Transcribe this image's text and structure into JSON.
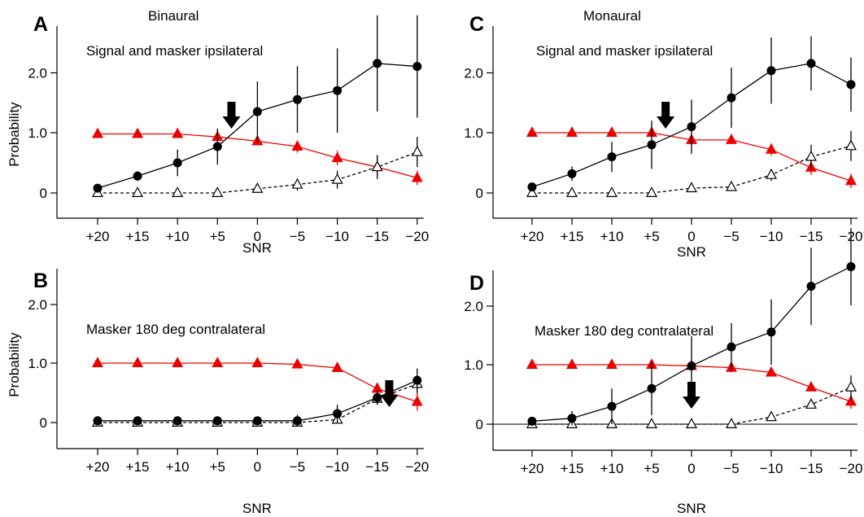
{
  "chart_data": [
    {
      "panel": "A",
      "type": "line",
      "header": "Binaural",
      "annotation": "Signal and masker ipsilateral",
      "xlabel": "SNR",
      "ylabel": "Probability",
      "categories": [
        "+20",
        "+15",
        "+10",
        "+5",
        "0",
        "−5",
        "−10",
        "−15",
        "−20"
      ],
      "yticks": [
        "0",
        "1.0",
        "2.0"
      ],
      "ylim": [
        -0.4,
        2.7
      ],
      "arrow_at": 3.35,
      "series": [
        {
          "style": "filled-circle-black",
          "color": "#000000",
          "values": [
            0.08,
            0.28,
            0.5,
            0.77,
            1.35,
            1.55,
            1.7,
            2.15,
            2.1
          ],
          "err": [
            0.05,
            0.08,
            0.22,
            0.3,
            0.5,
            0.55,
            0.7,
            0.8,
            0.85
          ]
        },
        {
          "style": "filled-triangle-red",
          "color": "#ee0000",
          "values": [
            0.98,
            0.98,
            0.98,
            0.93,
            0.86,
            0.77,
            0.58,
            0.43,
            0.25
          ],
          "err": [
            0,
            0,
            0,
            0,
            0,
            0.1,
            0.12,
            0.15,
            0.12
          ]
        },
        {
          "style": "open-triangle-dashed",
          "color": "#000000",
          "values": [
            0.0,
            0.0,
            0.0,
            0.0,
            0.07,
            0.14,
            0.22,
            0.43,
            0.68
          ],
          "err": [
            0,
            0,
            0,
            0,
            0.05,
            0.1,
            0.15,
            0.2,
            0.25
          ]
        }
      ]
    },
    {
      "panel": "B",
      "type": "line",
      "annotation": "Masker 180 deg contralateral",
      "xlabel": "SNR",
      "ylabel": "Probability",
      "categories": [
        "+20",
        "+15",
        "+10",
        "+5",
        "0",
        "−5",
        "−10",
        "−15",
        "−20"
      ],
      "yticks": [
        "0",
        "1.0",
        "2.0"
      ],
      "ylim": [
        -0.4,
        2.7
      ],
      "arrow_at": 7.3,
      "series": [
        {
          "style": "filled-circle-black",
          "color": "#000000",
          "values": [
            0.03,
            0.03,
            0.03,
            0.03,
            0.03,
            0.03,
            0.15,
            0.42,
            0.71
          ],
          "err": [
            0,
            0,
            0,
            0,
            0,
            0.1,
            0.15,
            0.12,
            0.2
          ]
        },
        {
          "style": "filled-triangle-red",
          "color": "#ee0000",
          "values": [
            1.0,
            1.0,
            1.0,
            1.0,
            1.0,
            0.98,
            0.92,
            0.57,
            0.35
          ],
          "err": [
            0,
            0,
            0,
            0,
            0,
            0,
            0,
            0.1,
            0.15
          ]
        },
        {
          "style": "open-triangle-dashed",
          "color": "#000000",
          "values": [
            0.0,
            0.0,
            0.0,
            0.0,
            0.0,
            0.0,
            0.05,
            0.4,
            0.65
          ],
          "err": [
            0,
            0,
            0,
            0,
            0,
            0,
            0.05,
            0.1,
            0.15
          ]
        }
      ]
    },
    {
      "panel": "C",
      "type": "line",
      "header": "Monaural",
      "annotation": "Signal and masker ipsilateral",
      "xlabel": "SNR",
      "ylabel": "",
      "categories": [
        "+20",
        "+15",
        "+10",
        "+5",
        "0",
        "−5",
        "−10",
        "−15",
        "−20"
      ],
      "yticks": [
        "0",
        "1.0",
        "2.0"
      ],
      "ylim": [
        -0.4,
        2.7
      ],
      "arrow_at": 3.35,
      "series": [
        {
          "style": "filled-circle-black",
          "color": "#000000",
          "values": [
            0.1,
            0.32,
            0.6,
            0.8,
            1.1,
            1.58,
            2.03,
            2.15,
            1.8
          ],
          "err": [
            0.05,
            0.12,
            0.25,
            0.4,
            0.45,
            0.5,
            0.55,
            0.45,
            0.45
          ]
        },
        {
          "style": "filled-triangle-red",
          "color": "#ee0000",
          "values": [
            1.0,
            1.0,
            1.0,
            1.0,
            0.88,
            0.88,
            0.72,
            0.42,
            0.2
          ],
          "err": [
            0,
            0,
            0,
            0,
            0,
            0,
            0.1,
            0.12,
            0.12
          ]
        },
        {
          "style": "open-triangle-dashed",
          "color": "#000000",
          "values": [
            0.0,
            0.0,
            0.0,
            0.0,
            0.08,
            0.1,
            0.3,
            0.6,
            0.78
          ],
          "err": [
            0,
            0,
            0,
            0,
            0.05,
            0.05,
            0.1,
            0.2,
            0.25
          ]
        }
      ]
    },
    {
      "panel": "D",
      "type": "line",
      "annotation": "Masker 180 deg contralateral",
      "xlabel": "SNR",
      "ylabel": "",
      "categories": [
        "+20",
        "+15",
        "+10",
        "+5",
        "0",
        "−5",
        "−10",
        "−15",
        "−20"
      ],
      "yticks": [
        "0",
        "1.0",
        "2.0"
      ],
      "ylim": [
        -0.4,
        2.7
      ],
      "arrow_at": 4.0,
      "zero_line": true,
      "series": [
        {
          "style": "filled-circle-black",
          "color": "#000000",
          "values": [
            0.05,
            0.1,
            0.3,
            0.6,
            0.98,
            1.3,
            1.55,
            2.32,
            2.65
          ],
          "err": [
            0.03,
            0.12,
            0.3,
            0.45,
            0.5,
            0.4,
            0.55,
            0.65,
            0.65
          ]
        },
        {
          "style": "filled-triangle-red",
          "color": "#ee0000",
          "values": [
            1.0,
            1.0,
            1.0,
            1.0,
            0.98,
            0.95,
            0.87,
            0.62,
            0.38
          ],
          "err": [
            0,
            0,
            0,
            0,
            0,
            0.08,
            0,
            0,
            0.12
          ]
        },
        {
          "style": "open-triangle-dashed",
          "color": "#000000",
          "values": [
            0.0,
            0.0,
            0.0,
            0.0,
            0.0,
            0.0,
            0.12,
            0.33,
            0.62
          ],
          "err": [
            0,
            0,
            0,
            0,
            0,
            0,
            0.05,
            0.05,
            0.2
          ]
        }
      ]
    }
  ]
}
